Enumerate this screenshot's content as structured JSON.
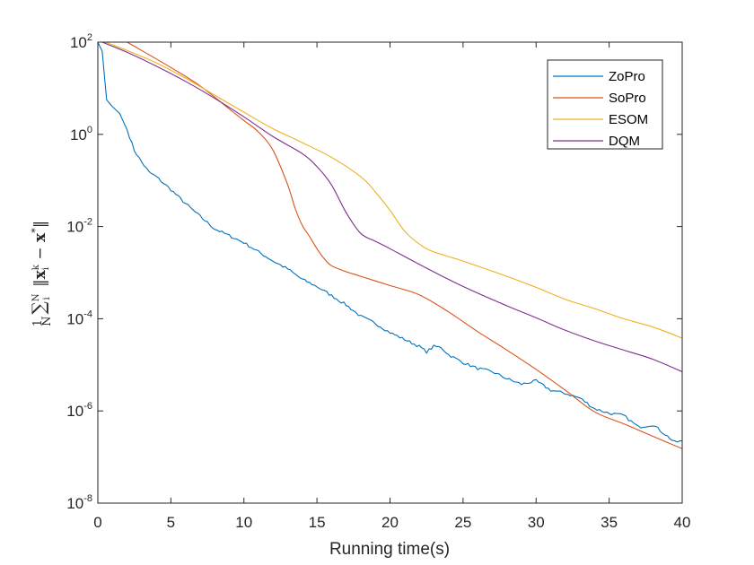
{
  "chart_data": {
    "type": "line",
    "title": "",
    "xlabel": "Running time(s)",
    "ylabel": "1/N ∑_i^N ||x_i^k − x*||",
    "yscale": "log",
    "xlim": [
      0,
      40
    ],
    "ylim_exponents": [
      -8,
      2
    ],
    "x_ticks": [
      0,
      5,
      10,
      15,
      20,
      25,
      30,
      35,
      40
    ],
    "x_tick_labels": [
      "0",
      "5",
      "10",
      "15",
      "20",
      "25",
      "30",
      "35",
      "40"
    ],
    "y_ticks_exponents": [
      2,
      0,
      -2,
      -4,
      -6,
      -8
    ],
    "y_tick_bases": [
      "10",
      "10",
      "10",
      "10",
      "10",
      "10"
    ],
    "y_tick_exponent_labels": [
      "2",
      "0",
      "-2",
      "-4",
      "-6",
      "-8"
    ],
    "legend_position": "top-right",
    "series": [
      {
        "name": "ZoPro",
        "color": "#0072BD",
        "noise": 0.06,
        "points_log10": [
          [
            0,
            2.0
          ],
          [
            0.3,
            1.8
          ],
          [
            0.6,
            0.75
          ],
          [
            1.0,
            0.6
          ],
          [
            1.5,
            0.45
          ],
          [
            2.0,
            0.1
          ],
          [
            2.5,
            -0.35
          ],
          [
            3.0,
            -0.6
          ],
          [
            3.5,
            -0.82
          ],
          [
            4.0,
            -0.92
          ],
          [
            5.0,
            -1.2
          ],
          [
            6.0,
            -1.5
          ],
          [
            7.0,
            -1.78
          ],
          [
            8.0,
            -2.05
          ],
          [
            9.0,
            -2.2
          ],
          [
            10.0,
            -2.35
          ],
          [
            11.0,
            -2.55
          ],
          [
            12.0,
            -2.75
          ],
          [
            13.0,
            -2.92
          ],
          [
            14.0,
            -3.15
          ],
          [
            15.0,
            -3.3
          ],
          [
            16.0,
            -3.5
          ],
          [
            17.0,
            -3.7
          ],
          [
            18.0,
            -3.95
          ],
          [
            19.0,
            -4.1
          ],
          [
            20.0,
            -4.3
          ],
          [
            21.0,
            -4.45
          ],
          [
            22.0,
            -4.6
          ],
          [
            22.5,
            -4.72
          ],
          [
            23.0,
            -4.6
          ],
          [
            23.5,
            -4.62
          ],
          [
            24.0,
            -4.78
          ],
          [
            25.0,
            -4.95
          ],
          [
            26.0,
            -5.08
          ],
          [
            27.0,
            -5.15
          ],
          [
            28.0,
            -5.3
          ],
          [
            29.0,
            -5.42
          ],
          [
            30.0,
            -5.35
          ],
          [
            31.0,
            -5.55
          ],
          [
            32.0,
            -5.62
          ],
          [
            33.0,
            -5.72
          ],
          [
            34.0,
            -5.95
          ],
          [
            35.0,
            -6.05
          ],
          [
            36.0,
            -6.1
          ],
          [
            37.0,
            -6.35
          ],
          [
            38.0,
            -6.3
          ],
          [
            39.0,
            -6.55
          ],
          [
            39.5,
            -6.68
          ],
          [
            40.0,
            -6.65
          ]
        ]
      },
      {
        "name": "SoPro",
        "color": "#D95319",
        "noise": 0,
        "points_log10": [
          [
            2.0,
            2.0
          ],
          [
            3.0,
            1.82
          ],
          [
            5.0,
            1.45
          ],
          [
            7.0,
            1.05
          ],
          [
            9.0,
            0.55
          ],
          [
            10.0,
            0.3
          ],
          [
            11.0,
            0.05
          ],
          [
            12.0,
            -0.35
          ],
          [
            13.0,
            -1.1
          ],
          [
            13.5,
            -1.6
          ],
          [
            14.0,
            -1.98
          ],
          [
            14.5,
            -2.22
          ],
          [
            15.0,
            -2.48
          ],
          [
            15.5,
            -2.7
          ],
          [
            16.0,
            -2.85
          ],
          [
            17.0,
            -2.98
          ],
          [
            18.0,
            -3.08
          ],
          [
            20.0,
            -3.28
          ],
          [
            22.0,
            -3.48
          ],
          [
            24.0,
            -3.85
          ],
          [
            26.0,
            -4.28
          ],
          [
            28.0,
            -4.68
          ],
          [
            30.0,
            -5.1
          ],
          [
            32.0,
            -5.55
          ],
          [
            34.0,
            -6.02
          ],
          [
            36.0,
            -6.28
          ],
          [
            38.0,
            -6.55
          ],
          [
            40.0,
            -6.82
          ]
        ]
      },
      {
        "name": "ESOM",
        "color": "#EDB120",
        "noise": 0,
        "points_log10": [
          [
            0.5,
            2.0
          ],
          [
            2.0,
            1.82
          ],
          [
            4.0,
            1.55
          ],
          [
            6.0,
            1.22
          ],
          [
            8.0,
            0.85
          ],
          [
            10.0,
            0.48
          ],
          [
            12.0,
            0.12
          ],
          [
            14.0,
            -0.18
          ],
          [
            16.0,
            -0.5
          ],
          [
            18.0,
            -0.92
          ],
          [
            19.0,
            -1.25
          ],
          [
            20.0,
            -1.65
          ],
          [
            21.0,
            -2.1
          ],
          [
            22.0,
            -2.38
          ],
          [
            23.0,
            -2.55
          ],
          [
            25.0,
            -2.75
          ],
          [
            28.0,
            -3.08
          ],
          [
            30.0,
            -3.32
          ],
          [
            32.0,
            -3.58
          ],
          [
            34.0,
            -3.78
          ],
          [
            36.0,
            -4.0
          ],
          [
            38.0,
            -4.18
          ],
          [
            40.0,
            -4.42
          ]
        ]
      },
      {
        "name": "DQM",
        "color": "#7E2F8E",
        "noise": 0,
        "points_log10": [
          [
            0.3,
            2.0
          ],
          [
            2.0,
            1.78
          ],
          [
            4.0,
            1.48
          ],
          [
            6.0,
            1.15
          ],
          [
            8.0,
            0.78
          ],
          [
            10.0,
            0.38
          ],
          [
            12.0,
            -0.05
          ],
          [
            14.0,
            -0.42
          ],
          [
            15.0,
            -0.7
          ],
          [
            16.0,
            -1.1
          ],
          [
            17.0,
            -1.7
          ],
          [
            18.0,
            -2.15
          ],
          [
            19.0,
            -2.32
          ],
          [
            20.0,
            -2.48
          ],
          [
            22.0,
            -2.82
          ],
          [
            25.0,
            -3.3
          ],
          [
            28.0,
            -3.72
          ],
          [
            30.0,
            -3.98
          ],
          [
            32.0,
            -4.25
          ],
          [
            34.0,
            -4.48
          ],
          [
            36.0,
            -4.68
          ],
          [
            38.0,
            -4.88
          ],
          [
            40.0,
            -5.15
          ]
        ]
      }
    ]
  }
}
